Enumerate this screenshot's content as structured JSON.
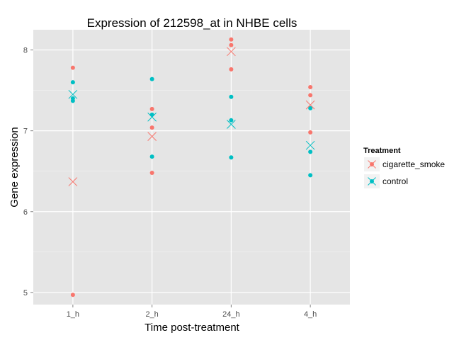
{
  "chart_data": {
    "type": "scatter",
    "title": "Expression of 212598_at in NHBE cells",
    "xlabel": "Time post-treatment",
    "ylabel": "Gene expression",
    "categories": [
      "1_h",
      "2_h",
      "24_h",
      "4_h"
    ],
    "yticks": [
      5,
      6,
      7,
      8
    ],
    "ylim": [
      4.85,
      8.25
    ],
    "grid": true,
    "legend": {
      "title": "Treatment",
      "placement": "right",
      "entries": [
        "cigarette_smoke",
        "control"
      ]
    },
    "series": [
      {
        "name": "cigarette_smoke",
        "color": "#F8766D",
        "points": {
          "1_h": [
            7.78,
            4.97
          ],
          "2_h": [
            7.27,
            7.04,
            6.48
          ],
          "24_h": [
            8.13,
            8.06,
            7.76
          ],
          "4_h": [
            7.54,
            7.44,
            6.98
          ]
        },
        "means": {
          "1_h": 6.37,
          "2_h": 6.93,
          "24_h": 7.98,
          "4_h": 7.32
        }
      },
      {
        "name": "control",
        "color": "#00BFC4",
        "points": {
          "1_h": [
            7.6,
            7.4,
            7.37
          ],
          "2_h": [
            7.64,
            7.2,
            6.68
          ],
          "24_h": [
            7.42,
            7.13,
            6.67
          ],
          "4_h": [
            7.28,
            6.74,
            6.45
          ]
        },
        "means": {
          "1_h": 7.45,
          "2_h": 7.17,
          "24_h": 7.08,
          "4_h": 6.82
        }
      }
    ]
  }
}
